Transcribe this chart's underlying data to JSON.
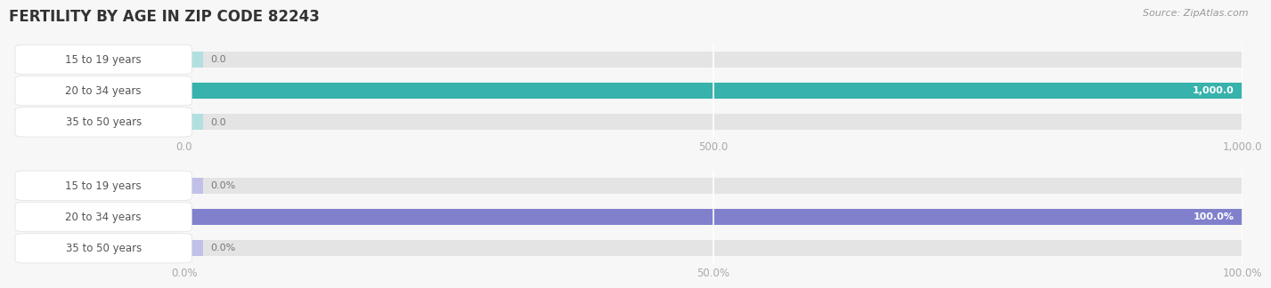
{
  "title": "FERTILITY BY AGE IN ZIP CODE 82243",
  "source_text": "Source: ZipAtlas.com",
  "top_chart": {
    "categories": [
      "15 to 19 years",
      "20 to 34 years",
      "35 to 50 years"
    ],
    "values": [
      0.0,
      1000.0,
      0.0
    ],
    "xlim": [
      0,
      1000.0
    ],
    "xticks": [
      0.0,
      500.0,
      1000.0
    ],
    "xtick_labels": [
      "0.0",
      "500.0",
      "1,000.0"
    ],
    "bar_color_full": "#38b2ac",
    "bar_color_empty": "#b2dfe0",
    "value_labels": [
      "0.0",
      "1,000.0",
      "0.0"
    ]
  },
  "bottom_chart": {
    "categories": [
      "15 to 19 years",
      "20 to 34 years",
      "35 to 50 years"
    ],
    "values": [
      0.0,
      100.0,
      0.0
    ],
    "xlim": [
      0,
      100.0
    ],
    "xticks": [
      0.0,
      50.0,
      100.0
    ],
    "xtick_labels": [
      "0.0%",
      "50.0%",
      "100.0%"
    ],
    "bar_color_full": "#8080cc",
    "bar_color_empty": "#c0c0e8",
    "value_labels": [
      "0.0%",
      "100.0%",
      "0.0%"
    ]
  },
  "background_color": "#f7f7f7",
  "bar_bg_color": "#e4e4e4",
  "label_bg_color": "#ffffff",
  "label_border_color": "#e0e0e0",
  "label_text_color": "#555555",
  "title_color": "#333333",
  "source_color": "#999999",
  "tick_color": "#aaaaaa",
  "bar_height": 0.52,
  "title_fontsize": 12,
  "label_fontsize": 8.5,
  "tick_fontsize": 8.5,
  "value_fontsize": 8.0
}
